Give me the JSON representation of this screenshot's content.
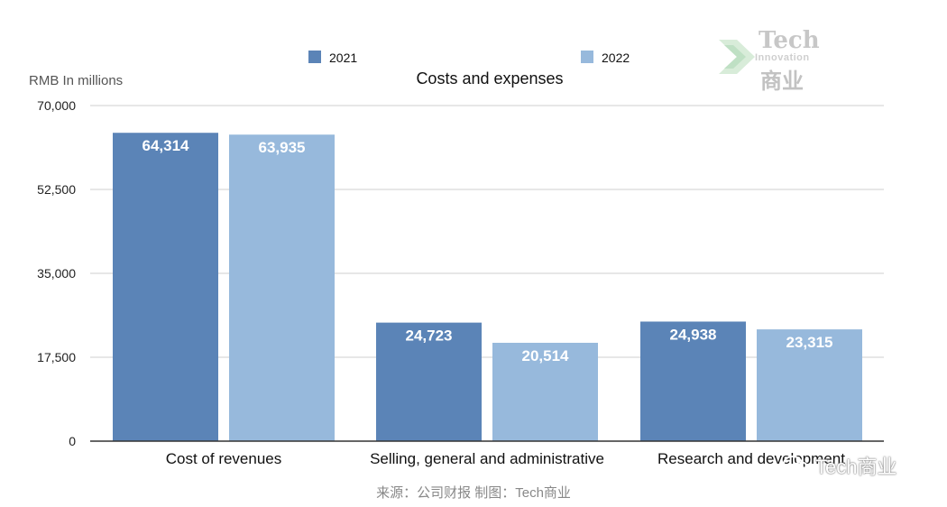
{
  "chart_data": {
    "type": "bar",
    "title": "Costs and expenses",
    "ylabel": "RMB In millions",
    "ylim": [
      0,
      70000
    ],
    "yticks": [
      "0",
      "17,500",
      "35,000",
      "52,500",
      "70,000"
    ],
    "ytick_values": [
      0,
      17500,
      35000,
      52500,
      70000
    ],
    "categories": [
      "Cost of revenues",
      "Selling, general and administrative",
      "Research and development"
    ],
    "series": [
      {
        "name": "2021",
        "values": [
          64314,
          24723,
          24938
        ],
        "labels": [
          "64,314",
          "24,723",
          "24,938"
        ],
        "color": "#5b84b7"
      },
      {
        "name": "2022",
        "values": [
          63935,
          20514,
          23315
        ],
        "labels": [
          "63,935",
          "20,514",
          "23,315"
        ],
        "color": "#97b9dc"
      }
    ],
    "grid": true,
    "legend": "top"
  },
  "watermark": {
    "top_brand": "Tech",
    "top_sub": "Innovation",
    "top_cn": "商业",
    "bottom": "Tech商业",
    "icon": "wechat-icon"
  },
  "credit": "来源：公司财报 制图：Tech商业"
}
